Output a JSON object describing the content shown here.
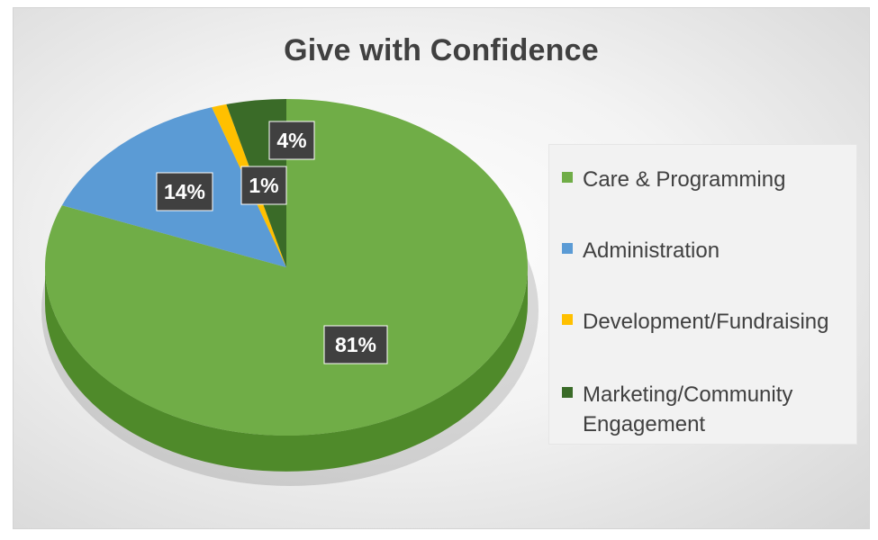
{
  "chart_data": {
    "type": "pie",
    "title": "Give with Confidence",
    "slices": [
      {
        "label": "Care & Programming",
        "value": 81,
        "data_label": "81%",
        "color": "#70ad47",
        "side_color": "#4f8a2a"
      },
      {
        "label": "Administration",
        "value": 14,
        "data_label": "14%",
        "color": "#5b9bd5",
        "side_color": "#3f78ad"
      },
      {
        "label": "Development/Fundraising",
        "value": 1,
        "data_label": "1%",
        "color": "#ffc000",
        "side_color": "#c79500"
      },
      {
        "label": "Marketing/Community Engagement",
        "value": 4,
        "data_label": "4%",
        "color": "#3a6b28",
        "side_color": "#2a4f1c"
      }
    ],
    "legend_position": "right",
    "legend": [
      {
        "label": "Care & Programming",
        "color": "#70ad47"
      },
      {
        "label": "Administration",
        "color": "#5b9bd5"
      },
      {
        "label": "Development/Fundraising",
        "color": "#ffc000"
      },
      {
        "label": "Marketing/Community Engagement",
        "color": "#3a6b28"
      }
    ]
  }
}
